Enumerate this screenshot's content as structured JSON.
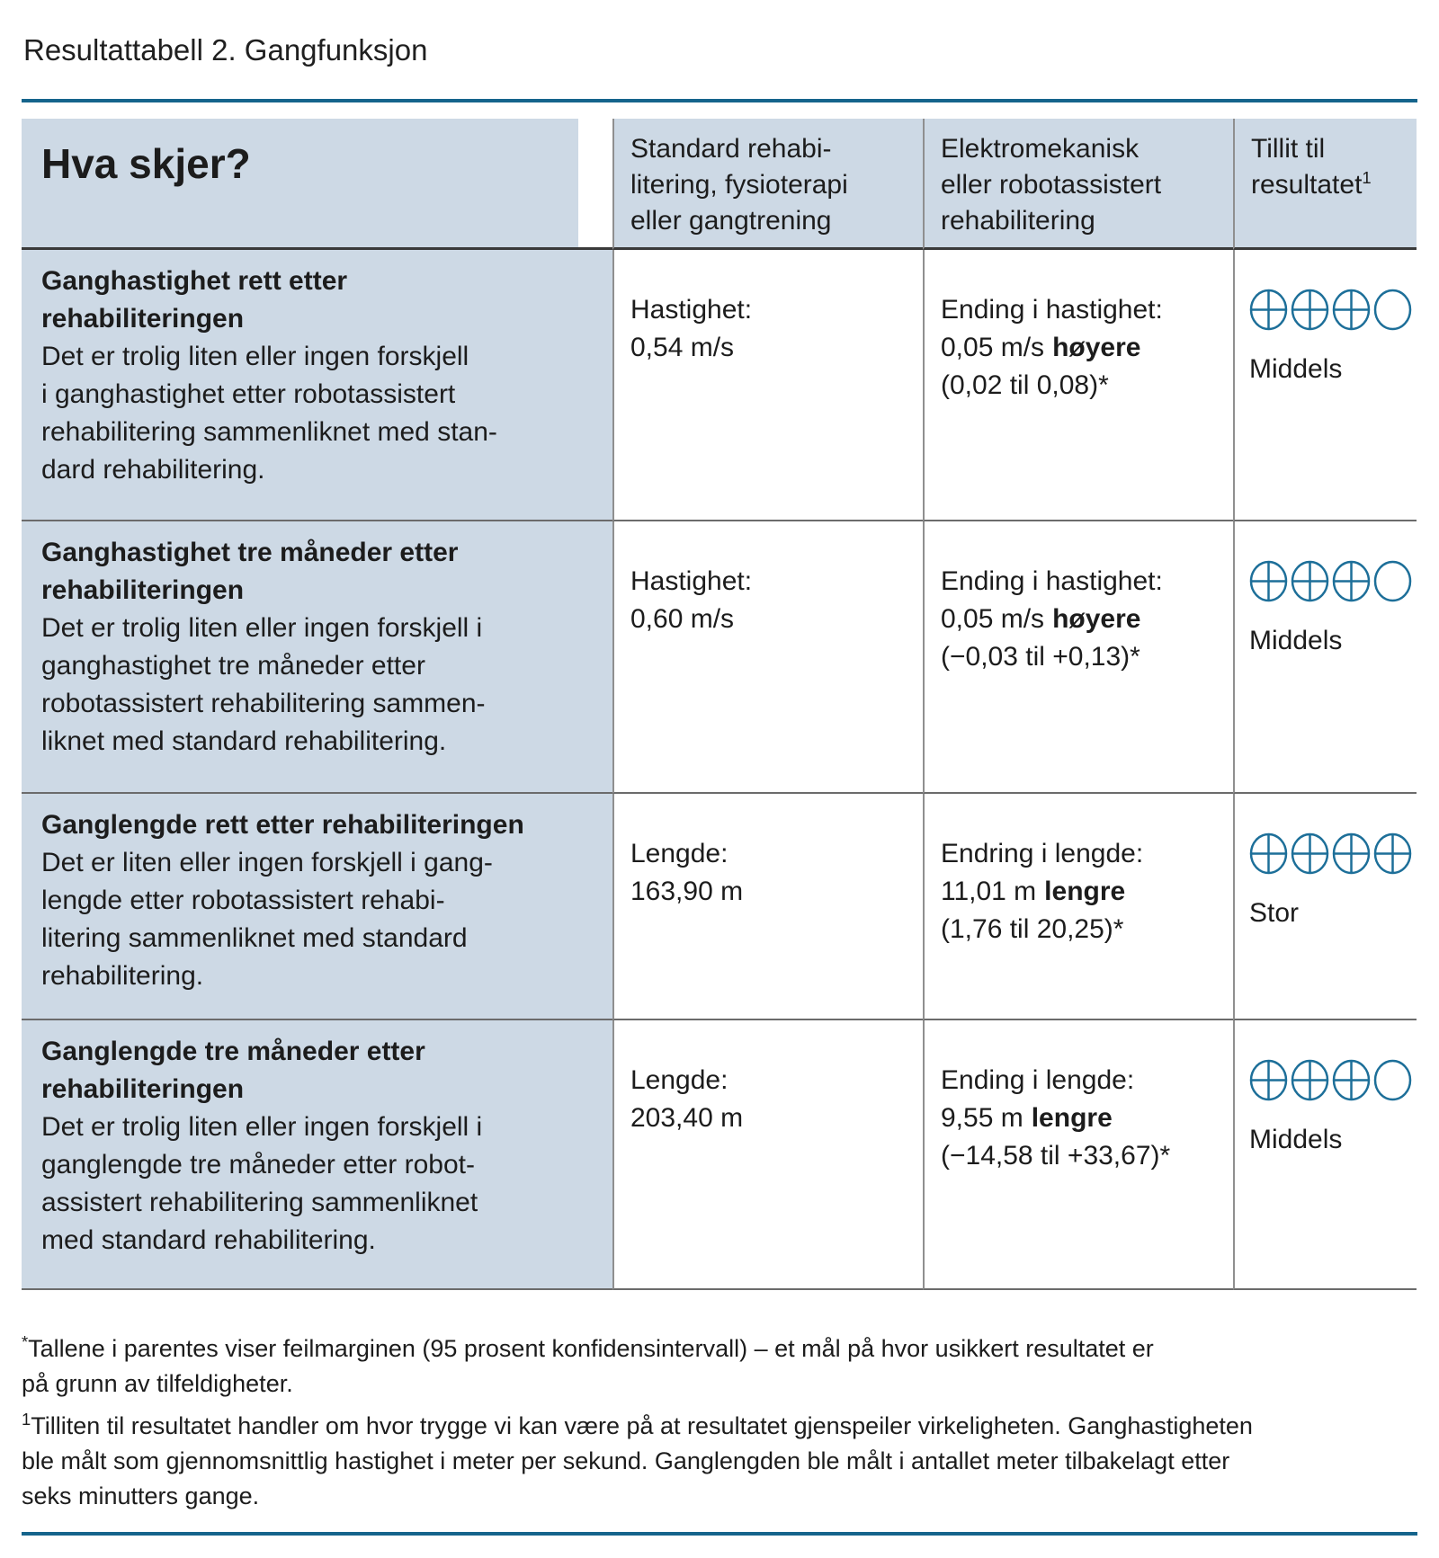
{
  "title": "Resultattabell 2. Gangfunksjon",
  "colors": {
    "accent": "#15648C",
    "icon": "#1D6F99",
    "cell_background": "#CDD9E5"
  },
  "table": {
    "header": {
      "outcome": "Hva skjer?",
      "comparison": "Standard rehabi-\nlitering, fysioterapi\neller gangtrening",
      "intervention": "Elektromekanisk\neller robotassistert\nrehabilitering",
      "confidence": "Tillit til\nresultatet",
      "confidence_footnote_marker": "1"
    },
    "rows": [
      {
        "outcome_title": "Ganghastighet rett etter\nrehabiliteringen",
        "outcome_text": "Det er trolig liten eller ingen forskjell\ni ganghastighet etter robotassistert\nrehabilitering sammenliknet med stan-\ndard rehabilitering.",
        "standard": {
          "label": "Hastighet:",
          "value": "0,54 m/s"
        },
        "effect": {
          "label": "Ending i hastighet:",
          "amount": "0,05 m/s",
          "direction": "høyere",
          "interval": "(0,02 til 0,08)*"
        },
        "confidence": {
          "filled": 3,
          "total": 4,
          "label": "Middels"
        }
      },
      {
        "outcome_title": "Ganghastighet tre måneder etter\nrehabiliteringen",
        "outcome_text": "Det er trolig liten eller ingen forskjell i\nganghastighet tre måneder etter\nrobotassistert rehabilitering sammen-\nliknet med standard rehabilitering.",
        "standard": {
          "label": "Hastighet:",
          "value": "0,60 m/s"
        },
        "effect": {
          "label": "Ending i hastighet:",
          "amount": "0,05 m/s",
          "direction": "høyere",
          "interval": "(−0,03 til +0,13)*"
        },
        "confidence": {
          "filled": 3,
          "total": 4,
          "label": "Middels"
        }
      },
      {
        "outcome_title": "Ganglengde rett etter rehabiliteringen",
        "outcome_text": "Det er liten eller ingen forskjell i gang-\nlengde etter robotassistert rehabi-\nlitering sammenliknet med standard\nrehabilitering.",
        "standard": {
          "label": "Lengde:",
          "value": "163,90 m"
        },
        "effect": {
          "label": "Endring i lengde:",
          "amount": "11,01 m",
          "direction": "lengre",
          "interval": "(1,76 til 20,25)*"
        },
        "confidence": {
          "filled": 4,
          "total": 4,
          "label": "Stor"
        }
      },
      {
        "outcome_title": "Ganglengde tre måneder etter\nrehabiliteringen",
        "outcome_text": "Det er trolig liten eller ingen forskjell i\nganglengde tre måneder etter robot-\nassistert rehabilitering sammenliknet\nmed standard rehabilitering.",
        "standard": {
          "label": "Lengde:",
          "value": "203,40 m"
        },
        "effect": {
          "label": "Ending i lengde:",
          "amount": "9,55 m",
          "direction": "lengre",
          "interval": "(−14,58 til +33,67)*"
        },
        "confidence": {
          "filled": 3,
          "total": 4,
          "label": "Middels"
        }
      }
    ]
  },
  "footnotes": [
    {
      "marker": "*",
      "text": "Tallene i parentes viser feilmarginen (95 prosent konfidensintervall) – et mål på hvor usikkert resultatet er\npå grunn av tilfeldigheter."
    },
    {
      "marker": "1",
      "text": "Tilliten til resultatet handler om hvor trygge vi kan være på at resultatet gjenspeiler virkeligheten. Ganghastigheten\nble målt som gjennomsnittlig hastighet i meter per sekund. Ganglengden ble målt i antallet meter tilbakelagt etter\nseks minutters gange."
    }
  ]
}
